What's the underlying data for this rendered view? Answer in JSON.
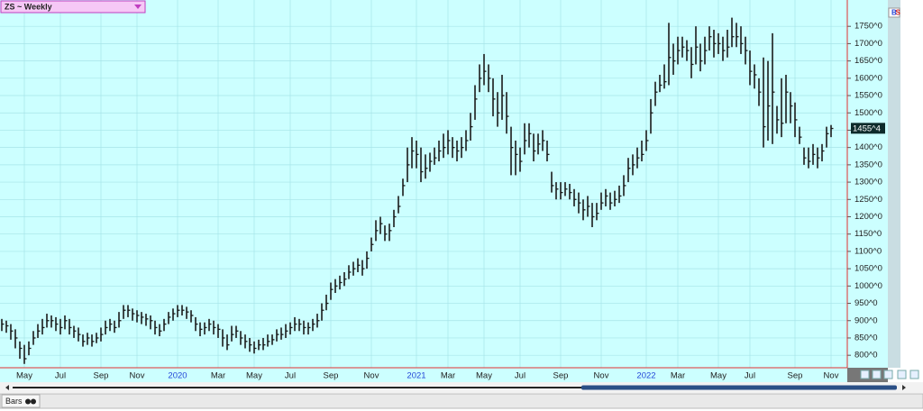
{
  "ui": {
    "title": "ZS ~ Weekly",
    "tab": "Bars",
    "badge": [
      "B",
      "S"
    ]
  },
  "chart_data": {
    "type": "ohlc",
    "categories": [
      null,
      null,
      null,
      null,
      null,
      "May",
      null,
      null,
      null,
      null,
      null,
      null,
      null,
      "Jul",
      null,
      null,
      null,
      null,
      null,
      null,
      null,
      null,
      "Sep",
      null,
      null,
      null,
      null,
      null,
      null,
      null,
      "Nov",
      null,
      null,
      null,
      null,
      null,
      null,
      null,
      null,
      "2020",
      null,
      null,
      null,
      null,
      null,
      null,
      null,
      null,
      "Mar",
      null,
      null,
      null,
      null,
      null,
      null,
      null,
      "May",
      null,
      null,
      null,
      null,
      null,
      null,
      null,
      "Jul",
      null,
      null,
      null,
      null,
      null,
      null,
      null,
      null,
      "Sep",
      null,
      null,
      null,
      null,
      null,
      null,
      null,
      null,
      "Nov",
      null,
      null,
      null,
      null,
      null,
      null,
      null,
      null,
      null,
      "2021",
      null,
      null,
      null,
      null,
      null,
      null,
      "Mar",
      null,
      null,
      null,
      null,
      null,
      null,
      null,
      "May",
      null,
      null,
      null,
      null,
      null,
      null,
      null,
      "Jul",
      null,
      null,
      null,
      null,
      null,
      null,
      null,
      null,
      "Sep",
      null,
      null,
      null,
      null,
      null,
      null,
      null,
      null,
      "Nov",
      null,
      null,
      null,
      null,
      null,
      null,
      null,
      null,
      null,
      "2022",
      null,
      null,
      null,
      null,
      null,
      null,
      "Mar",
      null,
      null,
      null,
      null,
      null,
      null,
      null,
      null,
      "May",
      null,
      null,
      null,
      null,
      null,
      null,
      "Jul",
      null,
      null,
      null,
      null,
      null,
      null,
      null,
      null,
      null,
      "Sep",
      null,
      null,
      null,
      null,
      null,
      null,
      null,
      "Nov"
    ],
    "high": [
      905,
      900,
      890,
      875,
      840,
      830,
      840,
      870,
      890,
      905,
      920,
      915,
      910,
      905,
      915,
      905,
      885,
      880,
      860,
      865,
      860,
      865,
      880,
      900,
      905,
      900,
      925,
      945,
      945,
      935,
      930,
      925,
      920,
      915,
      900,
      890,
      905,
      925,
      935,
      945,
      945,
      940,
      930,
      910,
      895,
      895,
      905,
      900,
      890,
      875,
      860,
      885,
      885,
      870,
      860,
      850,
      840,
      845,
      850,
      860,
      860,
      875,
      880,
      890,
      895,
      910,
      905,
      900,
      895,
      905,
      920,
      950,
      975,
      1010,
      1020,
      1030,
      1040,
      1060,
      1070,
      1080,
      1075,
      1100,
      1140,
      1190,
      1200,
      1175,
      1180,
      1220,
      1260,
      1310,
      1400,
      1430,
      1420,
      1400,
      1380,
      1385,
      1400,
      1420,
      1440,
      1450,
      1430,
      1420,
      1430,
      1450,
      1500,
      1580,
      1640,
      1670,
      1640,
      1600,
      1560,
      1610,
      1560,
      1460,
      1420,
      1400,
      1470,
      1470,
      1440,
      1440,
      1450,
      1420,
      1330,
      1300,
      1300,
      1300,
      1295,
      1280,
      1270,
      1250,
      1260,
      1240,
      1240,
      1270,
      1280,
      1270,
      1275,
      1290,
      1320,
      1370,
      1380,
      1400,
      1420,
      1450,
      1540,
      1590,
      1610,
      1640,
      1760,
      1700,
      1720,
      1720,
      1710,
      1690,
      1750,
      1700,
      1720,
      1750,
      1740,
      1730,
      1720,
      1740,
      1775,
      1760,
      1750,
      1720,
      1680,
      1640,
      1600,
      1660,
      1650,
      1730,
      1520,
      1600,
      1610,
      1560,
      1530,
      1460,
      1400,
      1400,
      1410,
      1400,
      1410,
      1460,
      1465
    ],
    "low": [
      870,
      865,
      845,
      820,
      790,
      775,
      800,
      830,
      850,
      860,
      880,
      880,
      870,
      860,
      875,
      860,
      850,
      840,
      825,
      830,
      825,
      835,
      840,
      860,
      870,
      865,
      880,
      905,
      910,
      900,
      895,
      890,
      885,
      875,
      860,
      855,
      870,
      890,
      900,
      910,
      915,
      905,
      895,
      870,
      855,
      860,
      870,
      860,
      850,
      825,
      815,
      840,
      850,
      830,
      820,
      810,
      805,
      815,
      815,
      825,
      830,
      840,
      845,
      850,
      860,
      870,
      870,
      860,
      860,
      870,
      880,
      900,
      930,
      960,
      980,
      990,
      1000,
      1020,
      1030,
      1040,
      1030,
      1050,
      1100,
      1130,
      1150,
      1130,
      1130,
      1170,
      1210,
      1260,
      1300,
      1340,
      1340,
      1300,
      1310,
      1330,
      1350,
      1360,
      1370,
      1380,
      1370,
      1360,
      1370,
      1390,
      1420,
      1480,
      1560,
      1580,
      1560,
      1490,
      1460,
      1480,
      1440,
      1320,
      1320,
      1330,
      1380,
      1400,
      1360,
      1380,
      1390,
      1360,
      1270,
      1250,
      1250,
      1260,
      1250,
      1230,
      1210,
      1190,
      1200,
      1170,
      1190,
      1220,
      1230,
      1220,
      1230,
      1240,
      1260,
      1300,
      1320,
      1340,
      1360,
      1390,
      1440,
      1520,
      1560,
      1570,
      1580,
      1610,
      1640,
      1660,
      1650,
      1600,
      1640,
      1620,
      1640,
      1680,
      1660,
      1670,
      1650,
      1660,
      1690,
      1690,
      1670,
      1640,
      1580,
      1570,
      1520,
      1400,
      1420,
      1410,
      1440,
      1430,
      1470,
      1470,
      1430,
      1410,
      1350,
      1340,
      1350,
      1340,
      1360,
      1400,
      1430
    ],
    "close": [
      890,
      885,
      870,
      850,
      820,
      790,
      820,
      850,
      870,
      880,
      900,
      900,
      890,
      880,
      900,
      880,
      870,
      860,
      840,
      850,
      840,
      850,
      860,
      880,
      890,
      880,
      900,
      930,
      930,
      920,
      915,
      910,
      905,
      900,
      880,
      870,
      890,
      910,
      920,
      930,
      930,
      925,
      915,
      890,
      875,
      880,
      890,
      880,
      875,
      850,
      830,
      860,
      870,
      850,
      840,
      830,
      820,
      830,
      830,
      840,
      845,
      860,
      860,
      870,
      880,
      890,
      890,
      880,
      880,
      890,
      900,
      930,
      950,
      990,
      1000,
      1010,
      1020,
      1040,
      1050,
      1060,
      1050,
      1080,
      1120,
      1160,
      1180,
      1150,
      1160,
      1200,
      1230,
      1290,
      1350,
      1390,
      1380,
      1330,
      1340,
      1360,
      1370,
      1390,
      1400,
      1420,
      1400,
      1390,
      1400,
      1420,
      1460,
      1540,
      1600,
      1620,
      1600,
      1540,
      1500,
      1550,
      1490,
      1400,
      1380,
      1360,
      1420,
      1440,
      1390,
      1410,
      1420,
      1380,
      1290,
      1280,
      1270,
      1280,
      1270,
      1250,
      1240,
      1220,
      1230,
      1200,
      1210,
      1240,
      1260,
      1240,
      1250,
      1260,
      1290,
      1340,
      1350,
      1370,
      1380,
      1420,
      1500,
      1560,
      1580,
      1590,
      1660,
      1650,
      1680,
      1690,
      1680,
      1640,
      1690,
      1650,
      1680,
      1720,
      1700,
      1700,
      1680,
      1690,
      1720,
      1720,
      1700,
      1680,
      1620,
      1610,
      1560,
      1460,
      1520,
      1560,
      1480,
      1470,
      1560,
      1520,
      1480,
      1430,
      1370,
      1360,
      1380,
      1370,
      1390,
      1440,
      1455
    ],
    "color": "#1a1a1a",
    "ylim": [
      764,
      1826
    ],
    "yticks": [
      {
        "value": 800,
        "label": "800^0"
      },
      {
        "value": 850,
        "label": "850^0"
      },
      {
        "value": 900,
        "label": "900^0"
      },
      {
        "value": 950,
        "label": "950^0"
      },
      {
        "value": 1000,
        "label": "1000^0"
      },
      {
        "value": 1050,
        "label": "1050^0"
      },
      {
        "value": 1100,
        "label": "1100^0"
      },
      {
        "value": 1150,
        "label": "1150^0"
      },
      {
        "value": 1200,
        "label": "1200^0"
      },
      {
        "value": 1250,
        "label": "1250^0"
      },
      {
        "value": 1300,
        "label": "1300^0"
      },
      {
        "value": 1350,
        "label": "1350^0"
      },
      {
        "value": 1400,
        "label": "1400^0"
      },
      {
        "value": 1450,
        "label": "1450^0"
      },
      {
        "value": 1500,
        "label": "1500^0"
      },
      {
        "value": 1550,
        "label": "1550^0"
      },
      {
        "value": 1600,
        "label": "1600^0"
      },
      {
        "value": 1650,
        "label": "1650^0"
      },
      {
        "value": 1700,
        "label": "1700^0"
      },
      {
        "value": 1750,
        "label": "1750^0"
      }
    ],
    "last_price": {
      "value": 1455.5,
      "label": "1455^4"
    },
    "grid": true,
    "background": "#ccffff",
    "grid_color": "#a6e4e8",
    "year_label_color": "#2446d8"
  }
}
